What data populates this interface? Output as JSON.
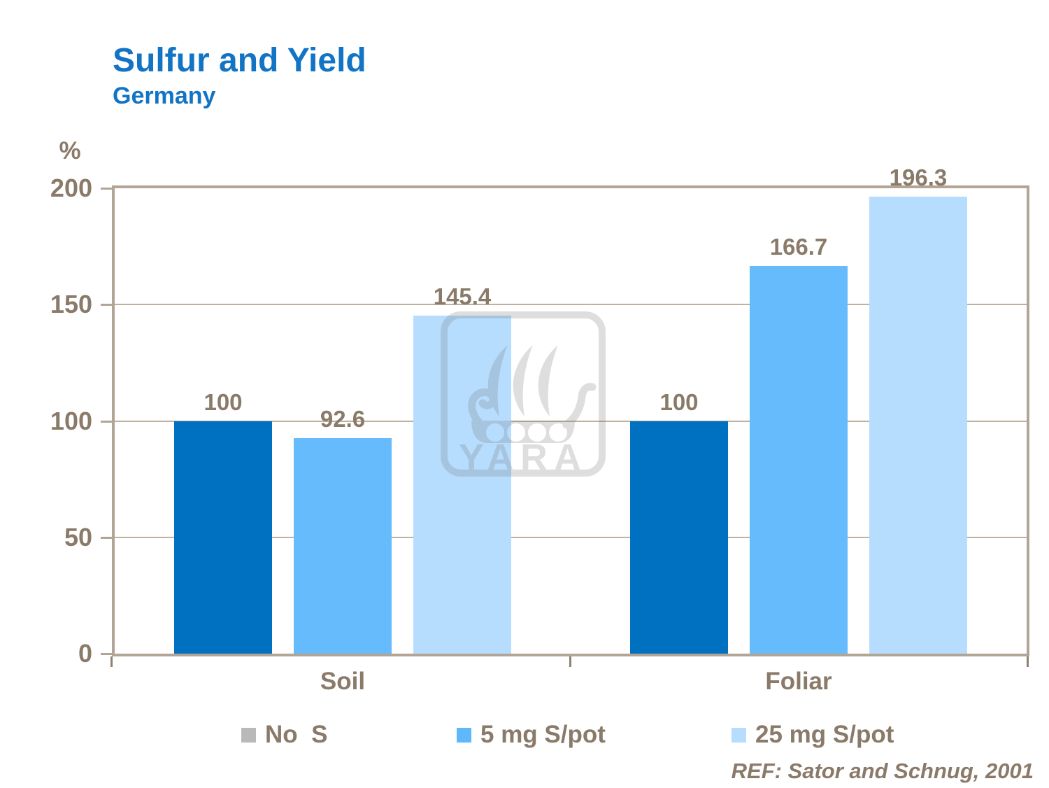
{
  "page": {
    "title": "Sulfur and Yield",
    "subtitle": "Germany",
    "reference": "REF: Sator and Schnug, 2001"
  },
  "watermark": {
    "text": "YARA"
  },
  "chart_data": {
    "type": "bar",
    "title": "Sulfur and Yield (Germany)",
    "ylabel": "%",
    "xlabel": "",
    "ylim": [
      0,
      200
    ],
    "yticks": [
      200,
      150,
      100,
      50,
      0
    ],
    "gridlines_at": [
      150,
      100,
      50
    ],
    "grid": true,
    "legend_position": "bottom",
    "categories": [
      "Soil",
      "Foliar"
    ],
    "series": [
      {
        "name": "No  S",
        "values": [
          100,
          100
        ],
        "bar_color": "#0070C0",
        "legend_color": "#B9B9B9"
      },
      {
        "name": "5 mg S/pot",
        "values": [
          92.6,
          166.7
        ],
        "bar_color": "#66BBFC",
        "legend_color": "#5FB8F9"
      },
      {
        "name": "25 mg S/pot",
        "values": [
          145.4,
          196.3
        ],
        "bar_color": "#B7DDFE",
        "legend_color": "#B7DDFE"
      }
    ],
    "colors": {
      "axis_and_border": "#B2A596",
      "gridline": "#BFB1A0",
      "label_text": "#8A7A69",
      "title_text": "#1274C5"
    }
  }
}
